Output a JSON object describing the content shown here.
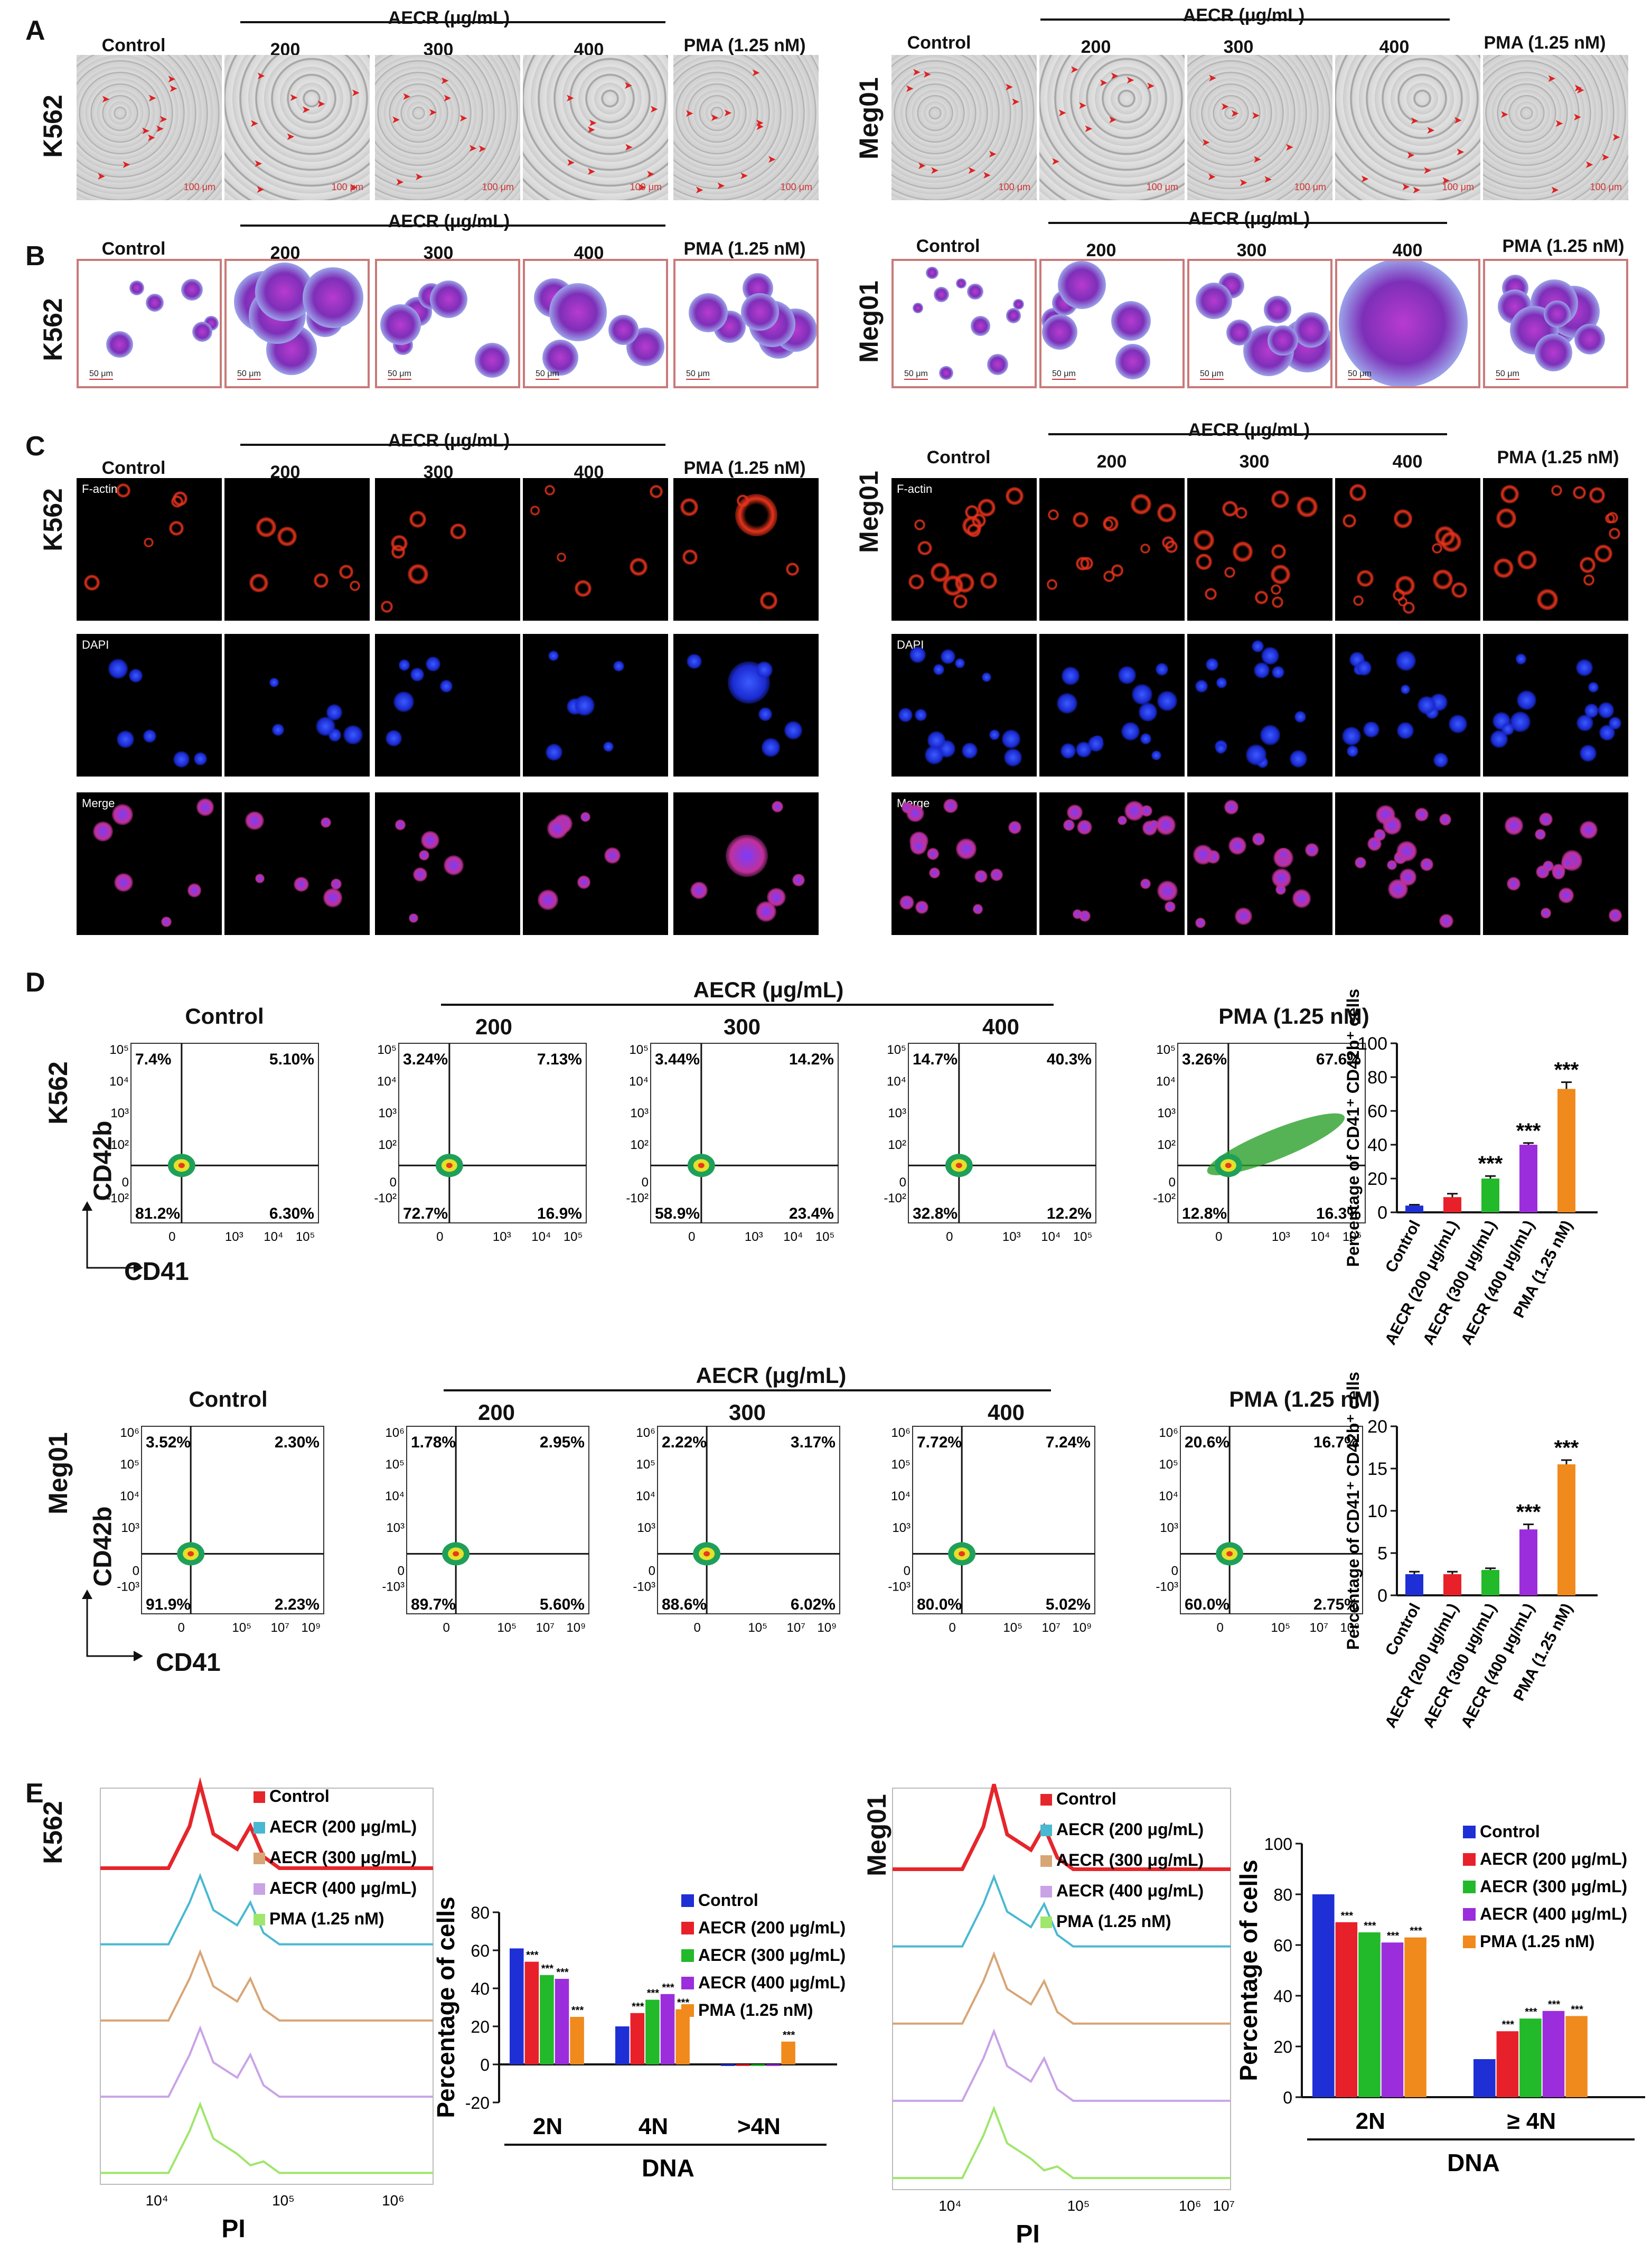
{
  "panels": {
    "A": "A",
    "B": "B",
    "C": "C",
    "D": "D",
    "E": "E"
  },
  "conditions": {
    "control": "Control",
    "aecr": "AECR (μg/mL)",
    "d200": "200",
    "d300": "300",
    "d400": "400",
    "pma": "PMA (1.25 nM)"
  },
  "cell_lines": {
    "k562": "K562",
    "meg01": "Meg01"
  },
  "panelA": {
    "scale_k562": [
      "100 μm",
      "100 μm",
      "100 μm",
      "100 μm",
      "100 μm"
    ],
    "scale_meg01": [
      "100 μm",
      "100 μm",
      "100 μm",
      "100 μm",
      "100 μm"
    ]
  },
  "panelB": {
    "scale": "50 μm"
  },
  "panelC": {
    "rows": [
      "F-actin",
      "DAPI",
      "Merge"
    ]
  },
  "panelD": {
    "xaxis": "CD41",
    "yaxis": "CD42b",
    "k562_quadrants": [
      [
        "7.4%",
        "5.10%",
        "81.2%",
        "6.30%"
      ],
      [
        "3.24%",
        "7.13%",
        "72.7%",
        "16.9%"
      ],
      [
        "3.44%",
        "14.2%",
        "58.9%",
        "23.4%"
      ],
      [
        "14.7%",
        "40.3%",
        "32.8%",
        "12.2%"
      ],
      [
        "3.26%",
        "67.6%",
        "12.8%",
        "16.3%"
      ]
    ],
    "meg01_quadrants": [
      [
        "3.52%",
        "2.30%",
        "91.9%",
        "2.23%"
      ],
      [
        "1.78%",
        "2.95%",
        "89.7%",
        "5.60%"
      ],
      [
        "2.22%",
        "3.17%",
        "88.6%",
        "6.02%"
      ],
      [
        "7.72%",
        "7.24%",
        "80.0%",
        "5.02%"
      ],
      [
        "20.6%",
        "16.7%",
        "60.0%",
        "2.75%"
      ]
    ],
    "k562_y_ticks": [
      "10⁵",
      "10⁴",
      "10³",
      "10²",
      "0",
      "-10²"
    ],
    "k562_x_ticks": [
      "0",
      "10³",
      "10⁴",
      "10⁵"
    ],
    "meg01_y_ticks": [
      "10⁶",
      "10⁵",
      "10⁴",
      "10³",
      "0",
      "-10³"
    ],
    "meg01_x_ticks": [
      "0",
      "10⁵",
      "10⁷",
      "10⁹"
    ]
  },
  "chart_data": [
    {
      "type": "bar",
      "categories": [
        "Control",
        "AECR (200 μg/mL)",
        "AECR (300 μg/mL)",
        "AECR (400 μg/mL)",
        "PMA (1.25 nM)"
      ],
      "values": [
        4,
        9,
        20,
        40,
        73
      ],
      "errors": [
        0.5,
        2,
        1.5,
        1,
        4
      ],
      "significance": [
        "",
        "",
        "***",
        "***",
        "***"
      ],
      "ylabel": "Percentage of CD41⁺ CD42b⁺ cells",
      "ylim": [
        0,
        100
      ],
      "yticks": [
        "0",
        "20",
        "40",
        "60",
        "80",
        "100"
      ],
      "colors": [
        "#1f2fd6",
        "#e8202a",
        "#22b92a",
        "#9b2ddc",
        "#f08a1c"
      ]
    },
    {
      "type": "bar",
      "categories": [
        "Control",
        "AECR (200 μg/mL)",
        "AECR (300 μg/mL)",
        "AECR (400 μg/mL)",
        "PMA (1.25 nM)"
      ],
      "values": [
        2.5,
        2.5,
        3,
        7.8,
        15.5
      ],
      "errors": [
        0.3,
        0.3,
        0.2,
        0.6,
        0.5
      ],
      "significance": [
        "",
        "",
        "",
        "***",
        "***"
      ],
      "ylabel": "Percentage of CD41⁺ CD42b⁺ cells",
      "ylim": [
        0,
        20
      ],
      "yticks": [
        "0",
        "5",
        "10",
        "15",
        "20"
      ],
      "colors": [
        "#1f2fd6",
        "#e8202a",
        "#22b92a",
        "#9b2ddc",
        "#f08a1c"
      ]
    },
    {
      "type": "bar",
      "categories": [
        "2N",
        "4N",
        ">4N"
      ],
      "series": [
        {
          "name": "Control",
          "values": [
            61,
            20,
            0
          ]
        },
        {
          "name": "AECR (200 μg/mL)",
          "values": [
            54,
            27,
            0
          ]
        },
        {
          "name": "AECR (300 μg/mL)",
          "values": [
            47,
            34,
            0
          ]
        },
        {
          "name": "AECR (400 μg/mL)",
          "values": [
            45,
            37,
            0
          ]
        },
        {
          "name": "PMA (1.25 nM)",
          "values": [
            25,
            29,
            12
          ]
        }
      ],
      "significance": [
        [
          "",
          "***",
          "***",
          "***",
          "***"
        ],
        [
          "",
          "***",
          "***",
          "***",
          "***"
        ],
        [
          "",
          "",
          "",
          "",
          "***"
        ]
      ],
      "xlabel": "DNA",
      "ylabel": "Percentage of cells",
      "ylim": [
        -20,
        80
      ],
      "yticks": [
        "-20",
        "0",
        "20",
        "40",
        "60",
        "80"
      ]
    },
    {
      "type": "bar",
      "categories": [
        "2N",
        "≥ 4N"
      ],
      "series": [
        {
          "name": "Control",
          "values": [
            80,
            15
          ]
        },
        {
          "name": "AECR (200 μg/mL)",
          "values": [
            69,
            26
          ]
        },
        {
          "name": "AECR (300 μg/mL)",
          "values": [
            65,
            31
          ]
        },
        {
          "name": "AECR (400 μg/mL)",
          "values": [
            61,
            34
          ]
        },
        {
          "name": "PMA (1.25 nM)",
          "values": [
            63,
            32
          ]
        }
      ],
      "significance": [
        [
          "",
          "***",
          "***",
          "***",
          "***"
        ],
        [
          "",
          "***",
          "***",
          "***",
          "***"
        ]
      ],
      "xlabel": "DNA",
      "ylabel": "Percentage of cells",
      "ylim": [
        0,
        100
      ],
      "yticks": [
        "0",
        "20",
        "40",
        "60",
        "80",
        "100"
      ]
    }
  ],
  "panelE": {
    "hist_legend": [
      "Control",
      "AECR (200 μg/mL)",
      "AECR (300 μg/mL)",
      "AECR (400 μg/mL)",
      "PMA (1.25 nM)"
    ],
    "hist_colors": [
      "#e5262b",
      "#49b8d2",
      "#d8a576",
      "#c9a3e6",
      "#9fe66c"
    ],
    "xlabel": "PI",
    "k562_x_ticks": [
      "10⁴",
      "10⁵",
      "10⁶"
    ],
    "meg01_x_ticks": [
      "10⁴",
      "10⁵",
      "10⁶",
      "10⁷"
    ],
    "bar_colors": [
      "#1f2fd6",
      "#e8202a",
      "#22b92a",
      "#9b2ddc",
      "#f08a1c"
    ]
  }
}
